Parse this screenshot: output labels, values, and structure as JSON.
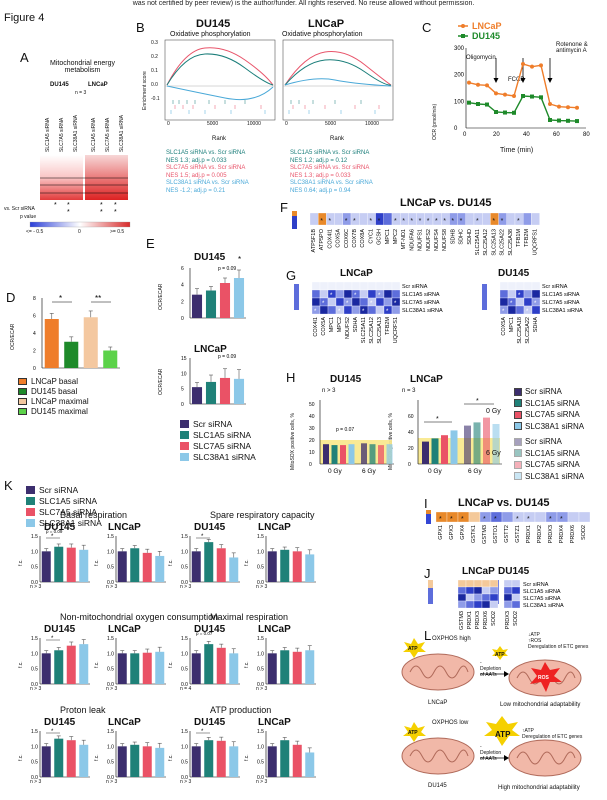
{
  "header_note": "was not certified by peer review) is the author/funder. All rights reserved. No reuse allowed without permission.",
  "figure_title": "Figure 4",
  "panels": {
    "A": {
      "letter": "A",
      "title": "Mitochondrial energy metabolism",
      "col1": "DU145",
      "col2": "LNCaP",
      "n": "n = 3",
      "rows": [
        "SLC1A5 siRNA",
        "SLC7A5 siRNA",
        "SLC38A1 siRNA",
        "SLC1A5 siRNA",
        "SLC7A5 siRNA",
        "SLC38A1 siRNA"
      ],
      "row_label": "vs. Scr siRNA",
      "pval_label": "p value",
      "scale_min": "<= - 0.5",
      "scale_zero": "0",
      "scale_max": ">= 0.5"
    },
    "B": {
      "letter": "B",
      "left_title": "DU145",
      "right_title": "LNCaP",
      "subtitle": "Oxidative phosphorylation",
      "ylabel": "Enrichment score",
      "xlabel": "Rank",
      "ticks_x": [
        "0",
        "5000",
        "10000"
      ],
      "ticks_y": [
        "0.3",
        "0.2",
        "0.1",
        "0.0",
        "-0.1"
      ],
      "du145_stats": [
        {
          "line1": "SLC1A5 siRNA vs. Scr siRNA",
          "line2": "NES 1.3; adj.p = 0.033",
          "color": "teal"
        },
        {
          "line1": "SLC7A5 siRNA vs. Scr siRNA",
          "line2": "NES 1.5; adj.p = 0.005",
          "color": "pink"
        },
        {
          "line1": "SLC38A1 siRNA vs. Scr siRNA",
          "line2": "NES -1.2; adj.p = 0.21",
          "color": "sky"
        }
      ],
      "lncap_stats": [
        {
          "line1": "SLC1A5 siRNA vs. Scr siRNA",
          "line2": "NES 1.2; adj.p = 0.12",
          "color": "teal"
        },
        {
          "line1": "SLC7A5 siRNA vs. Scr siRNA",
          "line2": "NES 1.3; adj.p = 0.033",
          "color": "pink"
        },
        {
          "line1": "SLC38A1 siRNA vs. Scr siRNA",
          "line2": "NES 0.64; adj.p = 0.94",
          "color": "sky"
        }
      ]
    },
    "C": {
      "letter": "C",
      "legend": [
        "LNCaP",
        "DU145"
      ],
      "ylabel": "OCR (pmol/min)",
      "xlabel": "Time (min)",
      "annotations": [
        "Oligomycin",
        "FCCP",
        "Rotenone & antimycin A"
      ],
      "xticks": [
        "0",
        "20",
        "40",
        "60",
        "80"
      ],
      "yticks": [
        "0",
        "100",
        "200",
        "300"
      ]
    },
    "D": {
      "letter": "D",
      "ylabel": "OCR/ECAR",
      "yticks": [
        "0",
        "2",
        "4",
        "6",
        "8"
      ],
      "legend": [
        "LNCaP basal",
        "DU145 basal",
        "LNCaP maximal",
        "DU145 maximal"
      ],
      "sig": [
        "*",
        "**"
      ]
    },
    "E": {
      "letter": "E",
      "top_title": "DU145",
      "bottom_title": "LNCaP",
      "ylabel": "OCR/ECAR",
      "top_yticks": [
        "0",
        "2",
        "4",
        "6"
      ],
      "bottom_yticks": [
        "0",
        "5",
        "10",
        "15"
      ],
      "legend": [
        "Scr siRNA",
        "SLC1A5 siRNA",
        "SLC7A5 siRNA",
        "SLC38A1 siRNA"
      ],
      "ptext": "p = 0.09"
    },
    "F": {
      "letter": "F",
      "title": "LNCaP vs. DU145",
      "genes": [
        "ATP5F1B",
        "ATP5PO",
        "COX4I1",
        "COX5A",
        "COX6C",
        "COX7B",
        "COX8A",
        "CYC1",
        "GCSH",
        "MPC1",
        "MPC2",
        "MT-ND1",
        "NDUFA6",
        "NDUFS1",
        "NDUFS2",
        "NDUFS4",
        "NDUFS8",
        "SDHB",
        "SDHC",
        "SDHD",
        "SLC25A11",
        "SLC25A12",
        "SLC25A13",
        "SLC25A22",
        "SLC25A38",
        "TFB1M",
        "TFB2M",
        "UQCRFS1"
      ],
      "scale": [
        "1",
        "0",
        "-1",
        "-2"
      ]
    },
    "G": {
      "letter": "G",
      "left_title": "LNCaP",
      "right_title": "DU145",
      "left_genes": [
        "COX4I1",
        "COX5A",
        "MPC1",
        "MPC2",
        "NDUFS2",
        "SDHA",
        "SLC25A11",
        "SLC25A12",
        "SLC25A13",
        "TFB2M",
        "UQCRFS1"
      ],
      "right_genes": [
        "COX5A",
        "MPC1",
        "SLC25A18",
        "SLC25A22",
        "SDHA"
      ],
      "rows": [
        "Scr siRNA",
        "SLC1A5 siRNA",
        "SLC7A5 siRNA",
        "SLC38A1 siRNA"
      ],
      "scale": [
        "0",
        "-0.2",
        "-0.4"
      ]
    },
    "H": {
      "letter": "H",
      "left_title": "DU145",
      "right_title": "LNCaP",
      "n": "n > 3",
      "n2": "n = 3",
      "ylabel": "MitoSOX positive cells, %",
      "xlabels": [
        "0 Gy",
        "6 Gy"
      ],
      "ptext": "p = 0.07",
      "legend_0gy": "0 Gy",
      "legend_6gy": "6 Gy",
      "legend": [
        "Scr siRNA",
        "SLC1A5 siRNA",
        "SLC7A5 siRNA",
        "SLC38A1 siRNA",
        "Scr siRNA",
        "SLC1A5 siRNA",
        "SLC7A5 siRNA",
        "SLC38A1 siRNA"
      ],
      "left_yticks": [
        "0",
        "10",
        "20",
        "30",
        "40",
        "50"
      ],
      "right_yticks": [
        "0",
        "20",
        "40",
        "60"
      ]
    },
    "I": {
      "letter": "I",
      "title": "LNCaP vs. DU145",
      "genes": [
        "GPX1",
        "GPX3",
        "GPX4",
        "GSTK1",
        "GSTM3",
        "GSTO1",
        "GSTT2",
        "GSTZ1",
        "PRDX1",
        "PRDX2",
        "PRDX3",
        "PRDX4",
        "PRDX6",
        "SOD2"
      ],
      "scale": [
        "2",
        "0",
        "-2",
        "-4"
      ]
    },
    "J": {
      "letter": "J",
      "left_title": "LNCaP",
      "right_title": "DU145",
      "left_genes": [
        "GSTM3",
        "PRDX1",
        "PRDX3",
        "PRDX6",
        "SOD2"
      ],
      "right_genes": [
        "PRDX3",
        "SOD2"
      ],
      "rows": [
        "Scr siRNA",
        "SLC1A5 siRNA",
        "SLC7A5 siRNA",
        "SLC38A1 siRNA"
      ],
      "scale_left": [
        "0.2",
        "0",
        "-0.2",
        "-0.4"
      ],
      "scale_right": [
        "-0.2",
        "-0.4",
        "-0.6",
        "-0.8",
        "-1"
      ]
    },
    "K": {
      "letter": "K",
      "legend": [
        "Scr siRNA",
        "SLC1A5 siRNA",
        "SLC7A5 siRNA",
        "SLC38A1 siRNA"
      ],
      "ylabel": "f.c.",
      "groups": [
        {
          "title": "Basal respiration",
          "left": "DU145",
          "right": "LNCaP",
          "n_left": "n > 3",
          "n_right": "n > 3",
          "ptext": "p = 0.09"
        },
        {
          "title": "Spare respiratory capacity",
          "left": "DU145",
          "right": "LNCaP",
          "n_left": "n > 3",
          "n_right": "n > 3",
          "ptext": ""
        },
        {
          "title": "Non-mitochondrial oxygen consumption",
          "left": "DU145",
          "right": "LNCaP",
          "n_left": "n > 3",
          "n_right": "n > 3",
          "ptext": ""
        },
        {
          "title": "Maximal respiration",
          "left": "DU145",
          "right": "LNCaP",
          "n_left": "n = 4",
          "n_right": "n > 3",
          "ptext": "p = 0.07"
        },
        {
          "title": "Proton leak",
          "left": "DU145",
          "right": "LNCaP",
          "n_left": "n > 3",
          "n_right": "n > 3",
          "ptext": ""
        },
        {
          "title": "ATP production",
          "left": "DU145",
          "right": "LNCaP",
          "n_left": "n > 3",
          "n_right": "n > 3",
          "ptext": ""
        }
      ],
      "yticks": [
        "0.0",
        "0.5",
        "1.0",
        "1.5"
      ]
    },
    "L": {
      "letter": "L",
      "top": {
        "atp": "ATP",
        "state": "OXPHOS high",
        "arrow": "- Depletion of AATs",
        "cell": "LNCaP",
        "notes": [
          "↓ATP",
          "↑ROS",
          "Deregulation of ETC genes"
        ],
        "ros": "ROS",
        "result": "Low mitochondrial adaptability"
      },
      "bottom": {
        "atp": "ATP",
        "state": "OXPHOS low",
        "arrow": "- Depletion of AATs",
        "cell": "DU145",
        "notes": [
          "↑ATP",
          "Deregulation of ETC genes"
        ],
        "result": "High mitochondrial adaptability"
      }
    }
  },
  "colors": {
    "scr": "#3c2e6e",
    "slc1a5": "#1f8178",
    "slc7a5": "#ea5266",
    "slc38a1": "#8cc8e8",
    "lncap_orange": "#ef7d2a",
    "du145_green": "#1e8a2a",
    "lncap_light": "#f4c8a0",
    "du145_light": "#5cd24a",
    "bar_yellow": "#f8e88a"
  },
  "chart_data": [
    {
      "type": "bar",
      "title": "OCR/ECAR",
      "categories": [
        "LNCaP basal",
        "DU145 basal",
        "LNCaP maximal",
        "DU145 maximal"
      ],
      "values": [
        5.6,
        3.0,
        5.8,
        2.0
      ],
      "ylim": [
        0,
        8
      ]
    },
    {
      "type": "bar",
      "title": "DU145",
      "categories": [
        "Scr siRNA",
        "SLC1A5 siRNA",
        "SLC7A5 siRNA",
        "SLC38A1 siRNA"
      ],
      "values": [
        2.8,
        3.3,
        4.2,
        4.8
      ],
      "ylim": [
        0,
        6
      ]
    },
    {
      "type": "bar",
      "title": "LNCaP",
      "categories": [
        "Scr siRNA",
        "SLC1A5 siRNA",
        "SLC7A5 siRNA",
        "SLC38A1 siRNA"
      ],
      "values": [
        5.5,
        7.2,
        8.5,
        8.2
      ],
      "ylim": [
        0,
        15
      ]
    },
    {
      "type": "line",
      "series": [
        {
          "name": "LNCaP",
          "x": [
            2,
            8,
            14,
            20,
            26,
            32,
            38,
            44,
            50,
            56,
            62,
            68,
            74
          ],
          "y": [
            170,
            162,
            160,
            130,
            125,
            120,
            240,
            230,
            235,
            90,
            80,
            78,
            76
          ]
        },
        {
          "name": "DU145",
          "x": [
            2,
            8,
            14,
            20,
            26,
            32,
            38,
            44,
            50,
            56,
            62,
            68,
            74
          ],
          "y": [
            95,
            90,
            88,
            60,
            58,
            57,
            120,
            118,
            115,
            30,
            28,
            27,
            26
          ]
        }
      ],
      "xlim": [
        0,
        80
      ],
      "ylim": [
        0,
        300
      ]
    }
  ]
}
